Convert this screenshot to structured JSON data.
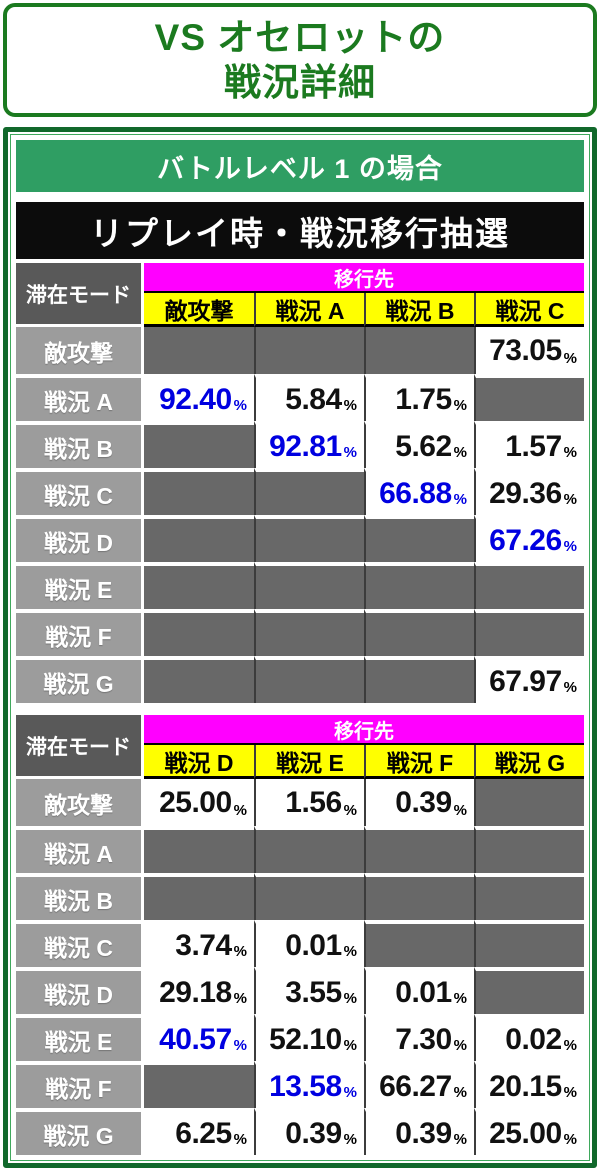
{
  "title": {
    "line1": "VS オセロットの",
    "line2": "戦況詳細"
  },
  "section_header": "バトルレベル 1 の場合",
  "table_title": "リプレイ時・戦況移行抽選",
  "percent_symbol": "%",
  "colors": {
    "title_green": "#1b7a1f",
    "panel_border_green": "#11682b",
    "banner_green": "#2f9e63",
    "header_black": "#0c0c0c",
    "dest_magenta": "#ff00ff",
    "column_yellow": "#ffff00",
    "corner_gray": "#595959",
    "row_header_gray": "#9c9c9c",
    "empty_cell_gray": "#686868",
    "highlight_blue": "#0000e0"
  },
  "tables": [
    {
      "corner_label": "滞在モード",
      "dest_label": "移行先",
      "columns": [
        "敵攻撃",
        "戦況 A",
        "戦況 B",
        "戦況 C"
      ],
      "rows": [
        {
          "label": "敵攻撃",
          "cells": [
            null,
            null,
            null,
            {
              "v": "73.05"
            }
          ]
        },
        {
          "label": "戦況 A",
          "cells": [
            {
              "v": "92.40",
              "blue": true
            },
            {
              "v": "5.84"
            },
            {
              "v": "1.75"
            },
            null
          ]
        },
        {
          "label": "戦況 B",
          "cells": [
            null,
            {
              "v": "92.81",
              "blue": true
            },
            {
              "v": "5.62"
            },
            {
              "v": "1.57"
            }
          ]
        },
        {
          "label": "戦況 C",
          "cells": [
            null,
            null,
            {
              "v": "66.88",
              "blue": true
            },
            {
              "v": "29.36"
            }
          ]
        },
        {
          "label": "戦況 D",
          "cells": [
            null,
            null,
            null,
            {
              "v": "67.26",
              "blue": true
            }
          ]
        },
        {
          "label": "戦況 E",
          "cells": [
            null,
            null,
            null,
            null
          ]
        },
        {
          "label": "戦況 F",
          "cells": [
            null,
            null,
            null,
            null
          ]
        },
        {
          "label": "戦況 G",
          "cells": [
            null,
            null,
            null,
            {
              "v": "67.97"
            }
          ]
        }
      ]
    },
    {
      "corner_label": "滞在モード",
      "dest_label": "移行先",
      "columns": [
        "戦況 D",
        "戦況 E",
        "戦況 F",
        "戦況 G"
      ],
      "rows": [
        {
          "label": "敵攻撃",
          "cells": [
            {
              "v": "25.00"
            },
            {
              "v": "1.56"
            },
            {
              "v": "0.39"
            },
            null
          ]
        },
        {
          "label": "戦況 A",
          "cells": [
            null,
            null,
            null,
            null
          ]
        },
        {
          "label": "戦況 B",
          "cells": [
            null,
            null,
            null,
            null
          ]
        },
        {
          "label": "戦況 C",
          "cells": [
            {
              "v": "3.74"
            },
            {
              "v": "0.01"
            },
            null,
            null
          ]
        },
        {
          "label": "戦況 D",
          "cells": [
            {
              "v": "29.18"
            },
            {
              "v": "3.55"
            },
            {
              "v": "0.01"
            },
            null
          ]
        },
        {
          "label": "戦況 E",
          "cells": [
            {
              "v": "40.57",
              "blue": true
            },
            {
              "v": "52.10"
            },
            {
              "v": "7.30"
            },
            {
              "v": "0.02"
            }
          ]
        },
        {
          "label": "戦況 F",
          "cells": [
            null,
            {
              "v": "13.58",
              "blue": true
            },
            {
              "v": "66.27"
            },
            {
              "v": "20.15"
            }
          ]
        },
        {
          "label": "戦況 G",
          "cells": [
            {
              "v": "6.25"
            },
            {
              "v": "0.39"
            },
            {
              "v": "0.39"
            },
            {
              "v": "25.00"
            }
          ]
        }
      ]
    }
  ]
}
